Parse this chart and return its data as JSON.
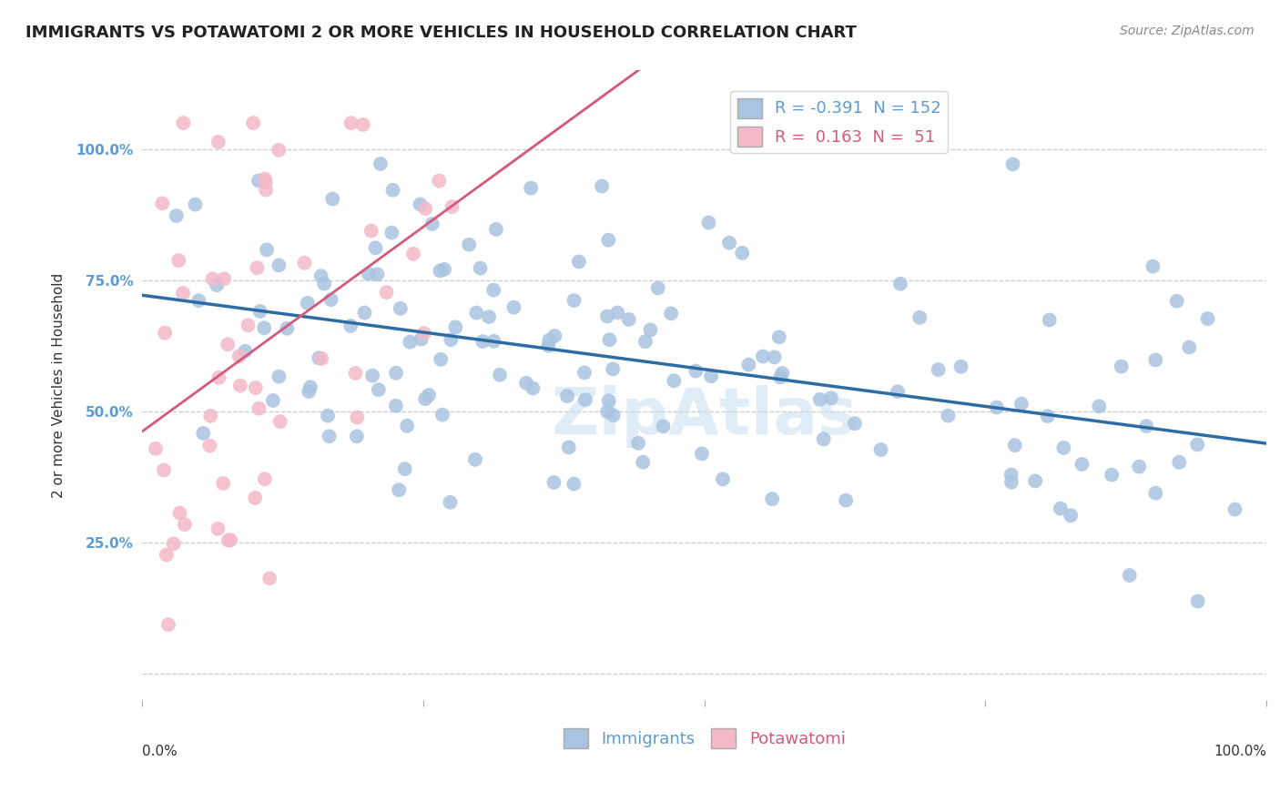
{
  "title": "IMMIGRANTS VS POTAWATOMI 2 OR MORE VEHICLES IN HOUSEHOLD CORRELATION CHART",
  "source_text": "Source: ZipAtlas.com",
  "ylabel": "2 or more Vehicles in Household",
  "xlim": [
    0.0,
    1.0
  ],
  "ylim": [
    -0.05,
    1.15
  ],
  "yticks": [
    0.0,
    0.25,
    0.5,
    0.75,
    1.0
  ],
  "ytick_labels": [
    "",
    "25.0%",
    "50.0%",
    "75.0%",
    "100.0%"
  ],
  "immigrants_R": -0.391,
  "immigrants_N": 152,
  "potawatomi_R": 0.163,
  "potawatomi_N": 51,
  "immigrants_color": "#a8c4e0",
  "immigrants_line_color": "#2e6da4",
  "potawatomi_color": "#f4b8c8",
  "potawatomi_line_color": "#d45a7a",
  "legend_immigrants_label": "Immigrants",
  "legend_potawatomi_label": "Potawatomi",
  "watermark": "ZipAtlas",
  "background_color": "#ffffff",
  "grid_color": "#cccccc",
  "title_fontsize": 13,
  "axis_label_fontsize": 11,
  "tick_fontsize": 11,
  "legend_fontsize": 13
}
